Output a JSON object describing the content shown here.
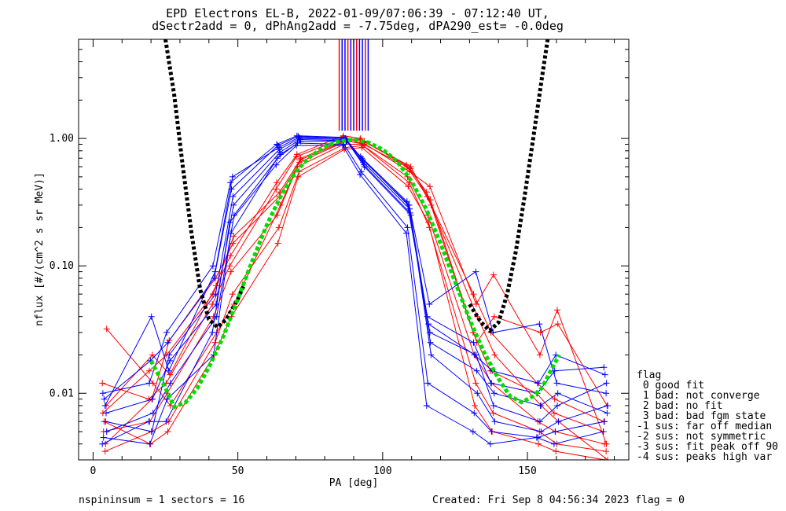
{
  "title_line1": "EPD Electrons EL-B, 2022-01-09/07:06:39 - 07:12:40 UT,",
  "title_line2": "dSectr2add = 0, dPhAng2add = -7.75deg, dPA290_est=  -0.0deg",
  "footer": {
    "left": "nspininsum =  1  sectors = 16",
    "right": "Created: Fri Sep  8 04:56:34 2023   flag = 0"
  },
  "legend": {
    "title": "flag",
    "items": [
      " 0 good fit",
      " 1 bad: not converge",
      " 2 bad: no fit",
      " 3 bad: bad fgm state",
      "-1 sus: far off median",
      "-2 sus: not symmetric",
      "-3 sus: fit peak off 90",
      "-4 sus: peaks high var"
    ]
  },
  "colors": {
    "red_series": "#ff0000",
    "blue_series": "#0000ff",
    "fit_curve": "#00dd00",
    "envelope_curve": "#000000",
    "axes": "#000000"
  },
  "chart_data": {
    "type": "line",
    "xlabel": "PA [deg]",
    "ylabel": "nflux [#/(cm^2 s sr MeV)]",
    "xlim": [
      -5,
      185
    ],
    "ylim": [
      0.003,
      6.0
    ],
    "yscale": "log",
    "xticks": [
      0,
      50,
      100,
      150
    ],
    "xtick_labels": [
      "0",
      "50",
      "100",
      "150"
    ],
    "yticks": [
      0.01,
      0.1,
      1.0
    ],
    "ytick_labels": [
      "0.01",
      "0.10",
      "1.00"
    ],
    "grid": false,
    "legend_position": "right-bottom",
    "fit_curve": {
      "name": "",
      "color": "#00dd00",
      "x": [
        20,
        25,
        28,
        32,
        36,
        40,
        45,
        50,
        55,
        60,
        65,
        70,
        75,
        80,
        85,
        90,
        95,
        100,
        105,
        110,
        115,
        120,
        125,
        130,
        135,
        140,
        144,
        148,
        152,
        155,
        158,
        161
      ],
      "y": [
        0.018,
        0.011,
        0.0078,
        0.0085,
        0.011,
        0.016,
        0.028,
        0.055,
        0.11,
        0.21,
        0.36,
        0.55,
        0.72,
        0.86,
        0.95,
        0.98,
        0.93,
        0.82,
        0.66,
        0.46,
        0.28,
        0.15,
        0.075,
        0.038,
        0.021,
        0.013,
        0.0095,
        0.0085,
        0.0095,
        0.011,
        0.015,
        0.02
      ]
    },
    "envelope_curve": {
      "name": "",
      "color": "#000000",
      "x": [
        25,
        28,
        31,
        34,
        37,
        40,
        43,
        46,
        50,
        52,
        130,
        134,
        137,
        140,
        143,
        146,
        149,
        152,
        155,
        157
      ],
      "y": [
        6.0,
        2.2,
        0.6,
        0.18,
        0.065,
        0.038,
        0.033,
        0.038,
        0.055,
        0.07,
        0.05,
        0.036,
        0.031,
        0.036,
        0.06,
        0.13,
        0.35,
        1.0,
        3.0,
        6.0
      ]
    },
    "sector_pa": [
      4,
      20,
      26,
      42,
      48,
      64,
      71,
      87,
      93,
      109,
      116,
      132,
      138,
      154,
      160,
      177
    ],
    "series": [
      {
        "color": "red",
        "values": [
          0.007,
          0.015,
          0.02,
          0.06,
          0.12,
          0.45,
          0.75,
          1.05,
          1.0,
          0.6,
          0.35,
          0.06,
          0.03,
          0.012,
          0.009,
          0.006
        ]
      },
      {
        "color": "red",
        "values": [
          0.004,
          0.009,
          0.026,
          0.08,
          0.15,
          0.35,
          0.65,
          0.95,
          0.92,
          0.55,
          0.42,
          0.05,
          0.085,
          0.02,
          0.045,
          0.004
        ]
      },
      {
        "color": "red",
        "values": [
          0.032,
          0.012,
          0.008,
          0.03,
          0.05,
          0.3,
          0.7,
          0.98,
          0.95,
          0.6,
          0.3,
          0.04,
          0.02,
          0.008,
          0.006,
          0.003
        ]
      },
      {
        "color": "red",
        "values": [
          0.005,
          0.006,
          0.01,
          0.04,
          0.09,
          0.25,
          0.6,
          0.9,
          0.9,
          0.5,
          0.25,
          0.02,
          0.012,
          0.006,
          0.005,
          0.004
        ]
      },
      {
        "color": "red",
        "values": [
          0.0035,
          0.005,
          0.006,
          0.025,
          0.06,
          0.2,
          0.55,
          0.85,
          0.88,
          0.45,
          0.2,
          0.012,
          0.007,
          0.005,
          0.004,
          0.0035
        ]
      },
      {
        "color": "red",
        "values": [
          0.012,
          0.009,
          0.012,
          0.05,
          0.1,
          0.4,
          0.72,
          1.0,
          0.98,
          0.62,
          0.38,
          0.03,
          0.015,
          0.01,
          0.007,
          0.005
        ]
      },
      {
        "color": "red",
        "values": [
          0.008,
          0.02,
          0.014,
          0.07,
          0.17,
          0.38,
          0.68,
          0.96,
          0.9,
          0.58,
          0.33,
          0.025,
          0.04,
          0.03,
          0.035,
          0.008
        ]
      },
      {
        "color": "red",
        "values": [
          0.006,
          0.004,
          0.005,
          0.02,
          0.04,
          0.15,
          0.5,
          0.82,
          0.85,
          0.42,
          0.22,
          0.008,
          0.005,
          0.004,
          0.0035,
          0.003
        ]
      },
      {
        "color": "blue",
        "values": [
          0.01,
          0.012,
          0.03,
          0.1,
          0.45,
          0.9,
          1.05,
          1.02,
          0.72,
          0.32,
          0.04,
          0.025,
          0.012,
          0.01,
          0.015,
          0.016
        ]
      },
      {
        "color": "blue",
        "values": [
          0.006,
          0.005,
          0.02,
          0.06,
          0.35,
          0.82,
          1.0,
          0.98,
          0.65,
          0.28,
          0.03,
          0.02,
          0.008,
          0.006,
          0.008,
          0.012
        ]
      },
      {
        "color": "blue",
        "values": [
          0.005,
          0.007,
          0.012,
          0.04,
          0.25,
          0.75,
          0.95,
          0.95,
          0.6,
          0.25,
          0.02,
          0.01,
          0.006,
          0.005,
          0.006,
          0.008
        ]
      },
      {
        "color": "blue",
        "values": [
          0.0045,
          0.004,
          0.009,
          0.02,
          0.18,
          0.7,
          0.92,
          0.9,
          0.55,
          0.2,
          0.012,
          0.007,
          0.005,
          0.0045,
          0.005,
          0.006
        ]
      },
      {
        "color": "blue",
        "values": [
          0.008,
          0.04,
          0.015,
          0.09,
          0.5,
          0.85,
          1.02,
          1.0,
          0.68,
          0.3,
          0.05,
          0.09,
          0.03,
          0.035,
          0.012,
          0.01
        ]
      },
      {
        "color": "blue",
        "values": [
          0.004,
          0.006,
          0.006,
          0.03,
          0.22,
          0.62,
          0.88,
          0.88,
          0.52,
          0.18,
          0.008,
          0.005,
          0.004,
          0.0045,
          0.004,
          0.005
        ]
      },
      {
        "color": "blue",
        "values": [
          0.007,
          0.009,
          0.018,
          0.05,
          0.3,
          0.78,
          0.98,
          0.96,
          0.62,
          0.26,
          0.025,
          0.015,
          0.01,
          0.008,
          0.01,
          0.007
        ]
      },
      {
        "color": "blue",
        "values": [
          0.009,
          0.018,
          0.025,
          0.08,
          0.4,
          0.88,
          1.04,
          1.0,
          0.7,
          0.3,
          0.035,
          0.02,
          0.015,
          0.012,
          0.02,
          0.014
        ]
      }
    ]
  }
}
